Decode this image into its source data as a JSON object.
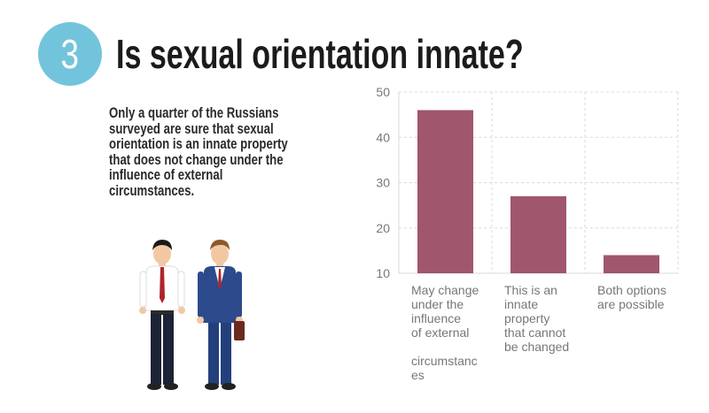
{
  "badge": {
    "number": "3"
  },
  "title": "Is sexual orientation innate?",
  "description": "Only a quarter of the Russians\nsurveyed are sure that sexual\norientation is an innate property\nthat does not change under the\ninfluence of external\ncircumstances.",
  "colors": {
    "badge": "#72c4dc",
    "bar": "#a0566c",
    "grid": "#d9d9d9",
    "axis_text": "#777777"
  },
  "chart_data": {
    "type": "bar",
    "categories": [
      "May change\nunder the\ninfluence\nof external\n\ncircumstanc\nes",
      "This is an\ninnate\nproperty\nthat cannot\nbe changed",
      "Both options\nare possible"
    ],
    "values": [
      46,
      27,
      14
    ],
    "ylim": [
      10,
      50
    ],
    "yticks": [
      10,
      20,
      30,
      40,
      50
    ],
    "grid": true,
    "title": "",
    "xlabel": "",
    "ylabel": ""
  },
  "illustration": {
    "description_icon": "two-businessmen-illustration"
  }
}
